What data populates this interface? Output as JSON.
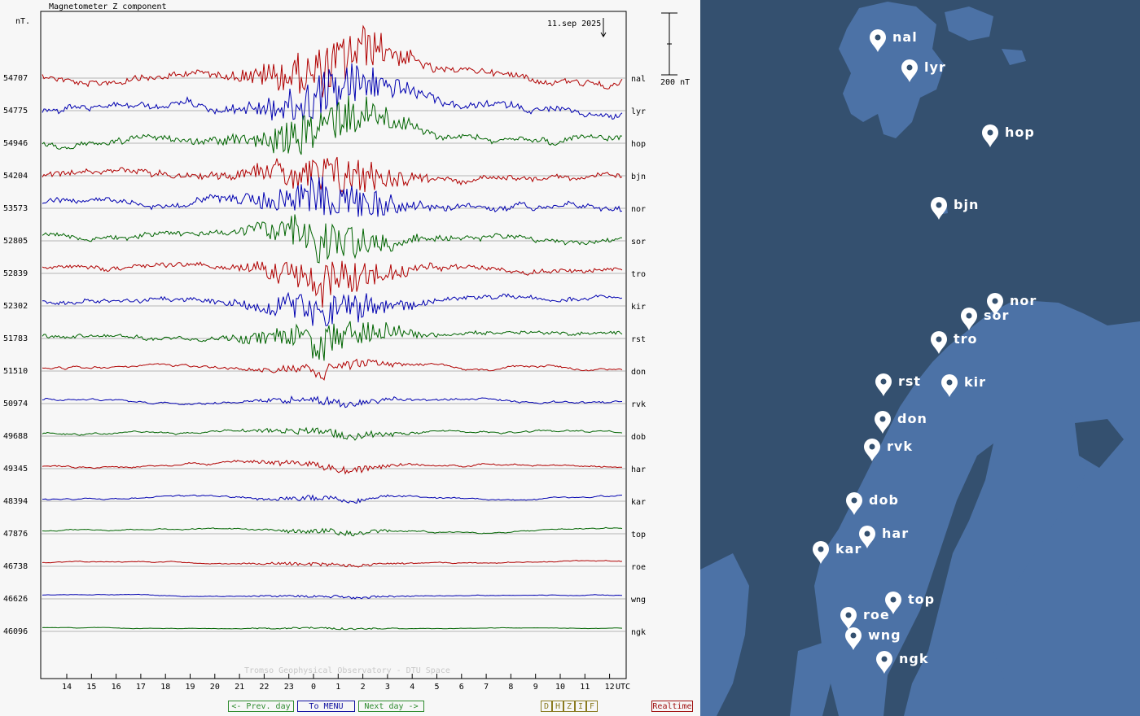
{
  "header": {
    "title": "Magnetometer Z component",
    "unit": "nT.",
    "date": "11.sep 2025",
    "scale_label": "200 nT",
    "watermark": "Tromso Geophysical Observatory - DTU Space"
  },
  "chart_data": {
    "type": "line",
    "title": "Magnetometer Z component",
    "ylabel": "nT.",
    "xlabel": "UTC",
    "x_ticks": [
      "14",
      "15",
      "16",
      "17",
      "18",
      "19",
      "20",
      "21",
      "22",
      "23",
      "0",
      "1",
      "2",
      "3",
      "4",
      "5",
      "6",
      "7",
      "8",
      "9",
      "10",
      "11",
      "12"
    ],
    "x_unit_label": "UTC",
    "scale_bar_nT": 200,
    "series": [
      {
        "name": "nal",
        "baseline": 54707,
        "color": "#b00000"
      },
      {
        "name": "lyr",
        "baseline": 54775,
        "color": "#0000b0"
      },
      {
        "name": "hop",
        "baseline": 54946,
        "color": "#006400"
      },
      {
        "name": "bjn",
        "baseline": 54204,
        "color": "#b00000"
      },
      {
        "name": "nor",
        "baseline": 53573,
        "color": "#0000b0"
      },
      {
        "name": "sor",
        "baseline": 52805,
        "color": "#006400"
      },
      {
        "name": "tro",
        "baseline": 52839,
        "color": "#b00000"
      },
      {
        "name": "kir",
        "baseline": 52302,
        "color": "#0000b0"
      },
      {
        "name": "rst",
        "baseline": 51783,
        "color": "#006400"
      },
      {
        "name": "don",
        "baseline": 51510,
        "color": "#b00000"
      },
      {
        "name": "rvk",
        "baseline": 50974,
        "color": "#0000b0"
      },
      {
        "name": "dob",
        "baseline": 49688,
        "color": "#006400"
      },
      {
        "name": "har",
        "baseline": 49345,
        "color": "#b00000"
      },
      {
        "name": "kar",
        "baseline": 48394,
        "color": "#0000b0"
      },
      {
        "name": "top",
        "baseline": 47876,
        "color": "#006400"
      },
      {
        "name": "roe",
        "baseline": 46738,
        "color": "#b00000"
      },
      {
        "name": "wng",
        "baseline": 46626,
        "color": "#0000b0"
      },
      {
        "name": "ngk",
        "baseline": 46096,
        "color": "#006400"
      }
    ]
  },
  "nav": {
    "prev_label": "<- Prev. day",
    "menu_label": "To MENU",
    "next_label": "Next day ->",
    "components": [
      "D",
      "H",
      "Z",
      "I",
      "F"
    ],
    "realtime_label": "Realtime"
  },
  "map": {
    "colors": {
      "sea": "#34506f",
      "land": "#4c72a6",
      "pin": "#ffffff"
    },
    "stations": [
      {
        "label": "nal"
      },
      {
        "label": "lyr"
      },
      {
        "label": "hop"
      },
      {
        "label": "bjn"
      },
      {
        "label": "nor"
      },
      {
        "label": "sor"
      },
      {
        "label": "tro"
      },
      {
        "label": "rst"
      },
      {
        "label": "kir"
      },
      {
        "label": "don"
      },
      {
        "label": "rvk"
      },
      {
        "label": "dob"
      },
      {
        "label": "har"
      },
      {
        "label": "kar"
      },
      {
        "label": "top"
      },
      {
        "label": "roe"
      },
      {
        "label": "wng"
      },
      {
        "label": "ngk"
      }
    ]
  }
}
